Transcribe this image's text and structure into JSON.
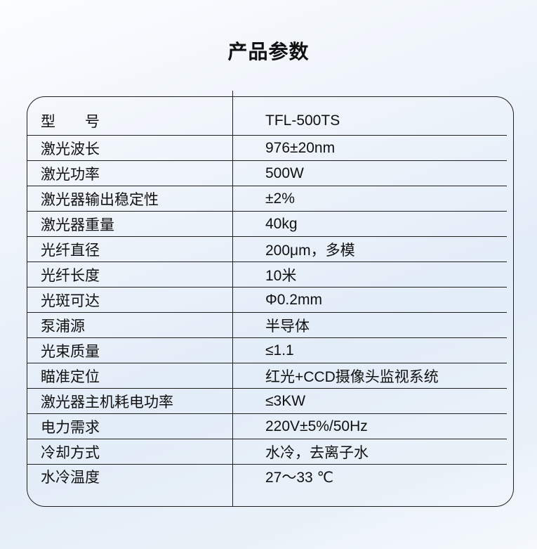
{
  "page": {
    "title": "产品参数"
  },
  "colors": {
    "background_top": "#fbfdff",
    "background_mid": "#e3edf8",
    "border": "#1f1f1f",
    "text": "#101010"
  },
  "table": {
    "columns": [
      "parameter",
      "value"
    ],
    "rows": [
      {
        "label": "型　　号",
        "value": "TFL-500TS"
      },
      {
        "label": "激光波长",
        "value": "976±20nm"
      },
      {
        "label": "激光功率",
        "value": "500W"
      },
      {
        "label": "激光器输出稳定性",
        "value": "±2%"
      },
      {
        "label": "激光器重量",
        "value": "40kg"
      },
      {
        "label": "光纤直径",
        "value": "200μm，多模"
      },
      {
        "label": "光纤长度",
        "value": "10米"
      },
      {
        "label": "光斑可达",
        "value": "Φ0.2mm"
      },
      {
        "label": "泵浦源",
        "value": "半导体"
      },
      {
        "label": "光束质量",
        "value": "≤1.1"
      },
      {
        "label": "瞄准定位",
        "value": "红光+CCD摄像头监视系统"
      },
      {
        "label": "激光器主机耗电功率",
        "value": "≤3KW"
      },
      {
        "label": "电力需求",
        "value": "220V±5%/50Hz"
      },
      {
        "label": "冷却方式",
        "value": "水冷，去离子水"
      },
      {
        "label": "水冷温度",
        "value": "27～33 ℃"
      }
    ]
  }
}
